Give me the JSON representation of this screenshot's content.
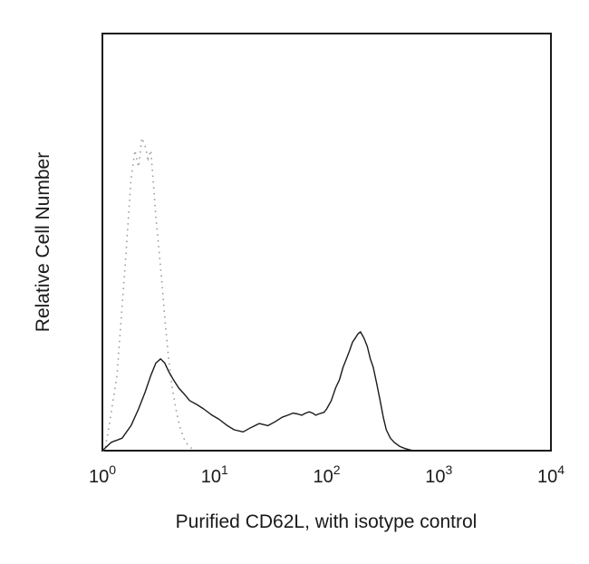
{
  "chart_data": {
    "type": "line",
    "title": "",
    "xlabel": "Purified CD62L, with isotype control",
    "ylabel": "Relative Cell Number",
    "x_scale": "log",
    "xlim": [
      1,
      10000
    ],
    "ylim": [
      0,
      1
    ],
    "grid": false,
    "legend": "none",
    "x_ticks": [
      {
        "base": "10",
        "exp": "0",
        "value": 1
      },
      {
        "base": "10",
        "exp": "1",
        "value": 10
      },
      {
        "base": "10",
        "exp": "2",
        "value": 100
      },
      {
        "base": "10",
        "exp": "3",
        "value": 1000
      },
      {
        "base": "10",
        "exp": "4",
        "value": 10000
      }
    ],
    "series": [
      {
        "style": "dotted",
        "color": "#9a9a9a",
        "x": [
          1.0,
          1.05,
          1.15,
          1.35,
          1.6,
          1.8,
          1.95,
          2.1,
          2.25,
          2.4,
          2.55,
          2.7,
          2.85,
          3.0,
          3.2,
          3.4,
          3.65,
          3.9,
          4.2,
          4.6,
          5.0,
          5.5,
          6.0,
          6.6
        ],
        "y": [
          0.0,
          0.0,
          0.06,
          0.18,
          0.45,
          0.65,
          0.72,
          0.68,
          0.75,
          0.73,
          0.7,
          0.72,
          0.64,
          0.56,
          0.48,
          0.4,
          0.3,
          0.22,
          0.15,
          0.09,
          0.05,
          0.02,
          0.01,
          0.0
        ]
      },
      {
        "style": "solid",
        "color": "#1a1a1a",
        "x": [
          1.0,
          1.2,
          1.5,
          1.8,
          2.1,
          2.4,
          2.7,
          3.0,
          3.3,
          3.6,
          3.9,
          4.3,
          4.8,
          5.4,
          6.0,
          7.0,
          8.0,
          9.5,
          11,
          13,
          15,
          18,
          21,
          25,
          30,
          35,
          40,
          45,
          50,
          55,
          60,
          65,
          70,
          75,
          80,
          85,
          90,
          95,
          100,
          110,
          120,
          130,
          140,
          150,
          160,
          170,
          180,
          190,
          200,
          215,
          230,
          245,
          260,
          280,
          300,
          320,
          340,
          370,
          400,
          450,
          500,
          550,
          600,
          650
        ],
        "y": [
          0.0,
          0.02,
          0.03,
          0.06,
          0.1,
          0.14,
          0.18,
          0.21,
          0.22,
          0.21,
          0.19,
          0.17,
          0.15,
          0.135,
          0.12,
          0.11,
          0.1,
          0.085,
          0.075,
          0.06,
          0.05,
          0.045,
          0.055,
          0.065,
          0.06,
          0.07,
          0.08,
          0.085,
          0.09,
          0.088,
          0.085,
          0.09,
          0.093,
          0.09,
          0.085,
          0.088,
          0.09,
          0.092,
          0.1,
          0.12,
          0.15,
          0.17,
          0.2,
          0.22,
          0.24,
          0.26,
          0.27,
          0.28,
          0.285,
          0.27,
          0.25,
          0.22,
          0.2,
          0.16,
          0.12,
          0.08,
          0.05,
          0.03,
          0.02,
          0.01,
          0.005,
          0.002,
          0.0,
          0.0
        ]
      }
    ]
  }
}
